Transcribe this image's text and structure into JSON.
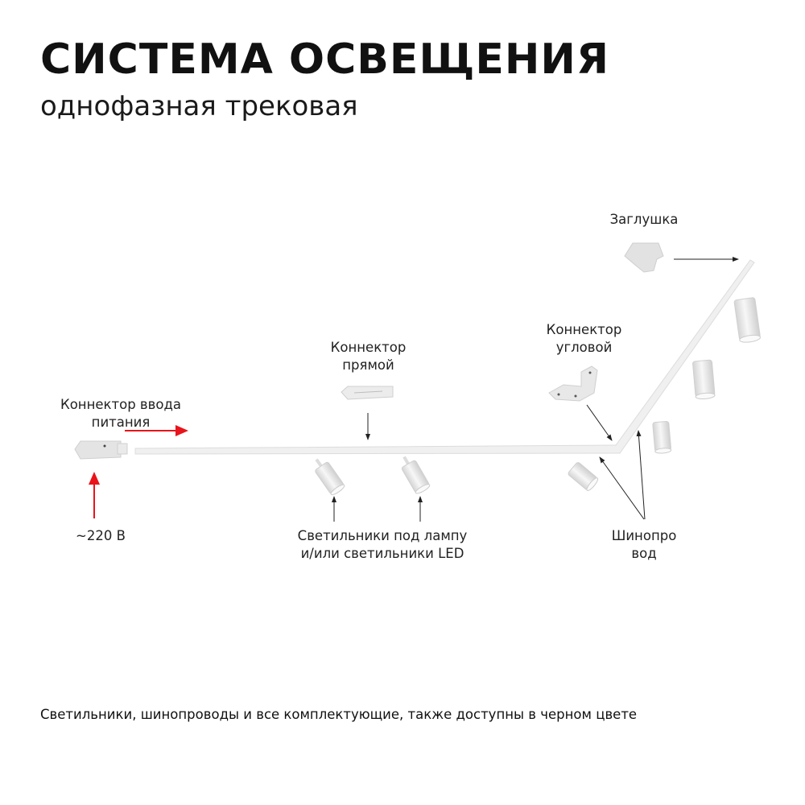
{
  "header": {
    "title": "СИСТЕМА ОСВЕЩЕНИЯ",
    "subtitle": "однофазная трековая"
  },
  "labels": {
    "power_connector": [
      "Коннектор ввода",
      "питания"
    ],
    "voltage": "~220 В",
    "straight_connector": [
      "Коннектор",
      "прямой"
    ],
    "corner_connector": [
      "Коннектор",
      "угловой"
    ],
    "end_cap": "Заглушка",
    "fixtures": [
      "Светильники под лампу",
      "и/или светильники LED"
    ],
    "busbar": [
      "Шинопро",
      "вод"
    ]
  },
  "footer": "Светильники, шинопроводы и все комплектующие, также доступны в черном цвете",
  "colors": {
    "power_arrow": "#e8141b",
    "pointer_arrow": "#222222",
    "product": "#e6e6e6"
  }
}
